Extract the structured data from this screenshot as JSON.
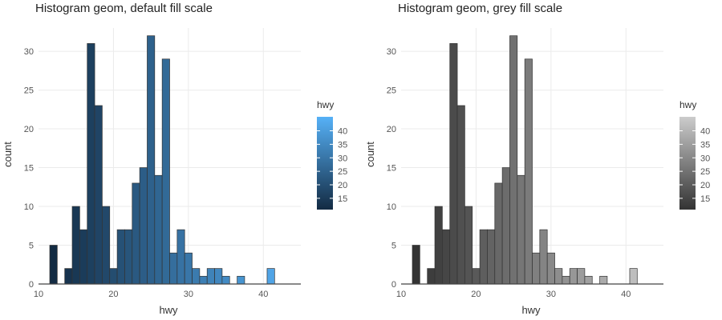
{
  "chart_data": [
    {
      "type": "bar",
      "title": "Histogram geom, default fill scale",
      "xlabel": "hwy",
      "ylabel": "count",
      "xlim": [
        10,
        45
      ],
      "ylim": [
        0,
        33
      ],
      "xticks": [
        10,
        20,
        30,
        40
      ],
      "yticks": [
        0,
        5,
        10,
        15,
        20,
        25,
        30
      ],
      "bin_width": 1,
      "bins": [
        {
          "x": 12,
          "count": 5
        },
        {
          "x": 14,
          "count": 2
        },
        {
          "x": 15,
          "count": 10
        },
        {
          "x": 16,
          "count": 7
        },
        {
          "x": 17,
          "count": 31
        },
        {
          "x": 18,
          "count": 23
        },
        {
          "x": 19,
          "count": 10
        },
        {
          "x": 20,
          "count": 2
        },
        {
          "x": 21,
          "count": 7
        },
        {
          "x": 22,
          "count": 7
        },
        {
          "x": 23,
          "count": 13
        },
        {
          "x": 24,
          "count": 15
        },
        {
          "x": 25,
          "count": 32
        },
        {
          "x": 26,
          "count": 14
        },
        {
          "x": 27,
          "count": 29
        },
        {
          "x": 28,
          "count": 4
        },
        {
          "x": 29,
          "count": 7
        },
        {
          "x": 30,
          "count": 4
        },
        {
          "x": 31,
          "count": 2
        },
        {
          "x": 32,
          "count": 1
        },
        {
          "x": 33,
          "count": 2
        },
        {
          "x": 34,
          "count": 2
        },
        {
          "x": 35,
          "count": 1
        },
        {
          "x": 37,
          "count": 1
        },
        {
          "x": 41,
          "count": 2
        }
      ],
      "fill_scale": "default",
      "colors": {
        "low": "#132b43",
        "high": "#56b1f7"
      },
      "legend": {
        "title": "hwy",
        "position": "right",
        "range": [
          12,
          44
        ],
        "labels": [
          "40",
          "35",
          "30",
          "25",
          "20",
          "15"
        ],
        "values": [
          40,
          35,
          30,
          25,
          20,
          15
        ]
      }
    },
    {
      "type": "bar",
      "title": "Histogram geom, grey fill scale",
      "xlabel": "hwy",
      "ylabel": "count",
      "xlim": [
        10,
        45
      ],
      "ylim": [
        0,
        33
      ],
      "xticks": [
        10,
        20,
        30,
        40
      ],
      "yticks": [
        0,
        5,
        10,
        15,
        20,
        25,
        30
      ],
      "bin_width": 1,
      "bins": [
        {
          "x": 12,
          "count": 5
        },
        {
          "x": 14,
          "count": 2
        },
        {
          "x": 15,
          "count": 10
        },
        {
          "x": 16,
          "count": 7
        },
        {
          "x": 17,
          "count": 31
        },
        {
          "x": 18,
          "count": 23
        },
        {
          "x": 19,
          "count": 10
        },
        {
          "x": 20,
          "count": 2
        },
        {
          "x": 21,
          "count": 7
        },
        {
          "x": 22,
          "count": 7
        },
        {
          "x": 23,
          "count": 13
        },
        {
          "x": 24,
          "count": 15
        },
        {
          "x": 25,
          "count": 32
        },
        {
          "x": 26,
          "count": 14
        },
        {
          "x": 27,
          "count": 29
        },
        {
          "x": 28,
          "count": 4
        },
        {
          "x": 29,
          "count": 7
        },
        {
          "x": 30,
          "count": 4
        },
        {
          "x": 31,
          "count": 2
        },
        {
          "x": 32,
          "count": 1
        },
        {
          "x": 33,
          "count": 2
        },
        {
          "x": 34,
          "count": 2
        },
        {
          "x": 35,
          "count": 1
        },
        {
          "x": 37,
          "count": 1
        },
        {
          "x": 41,
          "count": 2
        }
      ],
      "fill_scale": "grey",
      "colors": {
        "low": "#333333",
        "high": "#cccccc"
      },
      "legend": {
        "title": "hwy",
        "position": "right",
        "range": [
          12,
          44
        ],
        "labels": [
          "40",
          "35",
          "30",
          "25",
          "20",
          "15"
        ],
        "values": [
          40,
          35,
          30,
          25,
          20,
          15
        ]
      }
    }
  ]
}
